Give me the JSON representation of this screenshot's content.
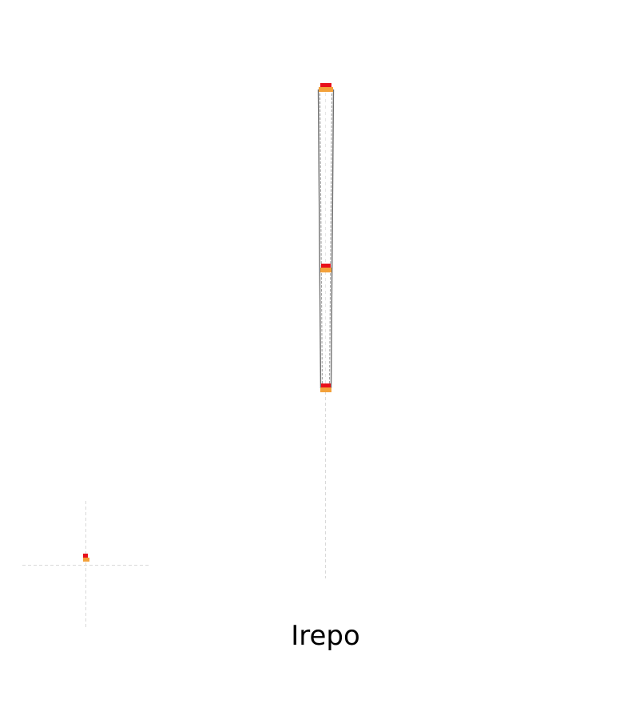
{
  "caption": "Irepo",
  "colors": {
    "background": "#ffffff",
    "guide": "#d9d9d9",
    "frame": "#6f6f6f",
    "node_top": "#e8101b",
    "node_bottom": "#f3a13a"
  },
  "elements": {
    "guides": [
      {
        "name": "vertical-guide-line"
      },
      {
        "name": "corner-horizontal-guide"
      },
      {
        "name": "corner-vertical-guide"
      }
    ],
    "frame": {
      "name": "double-line-frame"
    },
    "nodes": [
      {
        "name": "top-node-marker"
      },
      {
        "name": "middle-node-marker"
      },
      {
        "name": "bottom-node-marker"
      },
      {
        "name": "corner-marker"
      }
    ]
  }
}
